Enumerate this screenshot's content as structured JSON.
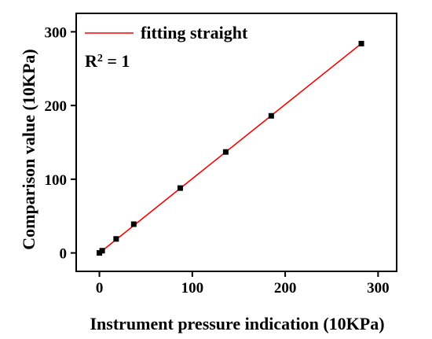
{
  "chart_data": {
    "type": "scatter",
    "xlabel": "Instrument pressure indication (10KPa)",
    "ylabel": "Comparison value (10KPa)",
    "xlim": [
      -25,
      320
    ],
    "ylim": [
      -25,
      325
    ],
    "x_ticks": [
      0,
      100,
      200,
      300
    ],
    "y_ticks": [
      0,
      100,
      200,
      300
    ],
    "x_tick_labels": [
      "0",
      "100",
      "200",
      "300"
    ],
    "y_tick_labels": [
      "0",
      "100",
      "200",
      "300"
    ],
    "grid": false,
    "legend_position": "top-left",
    "legend": {
      "label": "fitting straight"
    },
    "annotation": {
      "r2_prefix": "R",
      "r2_exp": "2",
      "r2_suffix": " = 1"
    },
    "series": [
      {
        "type": "scatter",
        "marker": "square",
        "color": "#000000",
        "points": [
          {
            "x": 0,
            "y": 0
          },
          {
            "x": 3,
            "y": 3
          },
          {
            "x": 18,
            "y": 19
          },
          {
            "x": 37,
            "y": 39
          },
          {
            "x": 87,
            "y": 88
          },
          {
            "x": 136,
            "y": 137
          },
          {
            "x": 185,
            "y": 186
          },
          {
            "x": 282,
            "y": 284
          }
        ]
      },
      {
        "type": "line",
        "name": "fitting straight",
        "color": "#ff0000",
        "points": [
          {
            "x": 0,
            "y": 0
          },
          {
            "x": 282,
            "y": 284
          }
        ]
      }
    ]
  }
}
